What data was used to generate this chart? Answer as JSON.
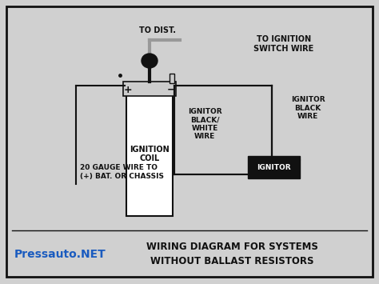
{
  "bg_color": "#d0d0d0",
  "border_color": "#444444",
  "title_line1": "WIRING DIAGRAM FOR SYSTEMS",
  "title_line2": "WITHOUT BALLAST RESISTORS",
  "watermark": "Pressauto.NET",
  "watermark_color": "#1a5bbf",
  "title_color": "#111111",
  "title_fontsize": 8.5,
  "watermark_fontsize": 10,
  "coil_label": "IGNITION\nCOIL",
  "ignitor_label": "IGNITOR",
  "labels": {
    "to_dist": "TO DIST.",
    "to_ignition": "TO IGNITION\nSWITCH WIRE",
    "ignitor_bw": "IGNITOR\nBLACK/\nWHITE\nWIRE",
    "ignitor_black": "IGNITOR\nBLACK\nWIRE",
    "gauge_wire": "20 GAUGE WIRE TO\n(+) BAT. OR CHASSIS"
  },
  "dark": "#111111",
  "white": "#ffffff",
  "gray": "#999999",
  "light_gray": "#cccccc"
}
